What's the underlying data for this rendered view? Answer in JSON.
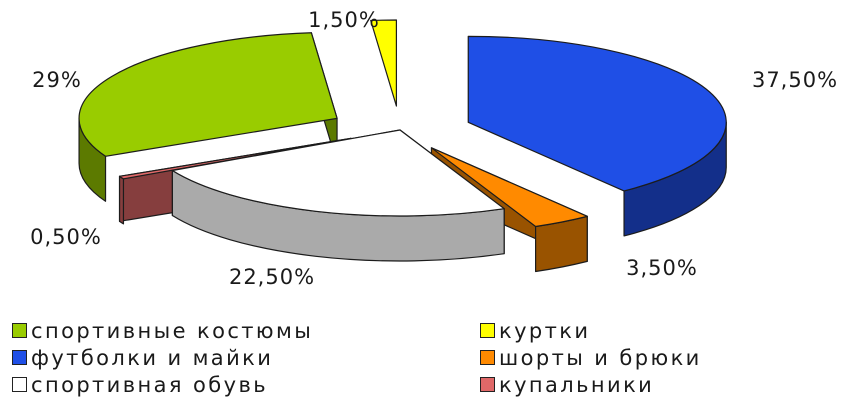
{
  "chart_data": {
    "type": "pie",
    "style": "3d-exploded",
    "slices": [
      {
        "label": "футболки и майки",
        "value": 37.5,
        "display": "37,50%",
        "color": "#1f4fe6"
      },
      {
        "label": "шорты и брюки",
        "value": 3.5,
        "display": "3,50%",
        "color": "#ff8a00"
      },
      {
        "label": "спортивная обувь",
        "value": 22.5,
        "display": "22,50%",
        "color": "#ffffff"
      },
      {
        "label": "купальники",
        "value": 0.5,
        "display": "0,50%",
        "color": "#e06868"
      },
      {
        "label": "спортивные костюмы",
        "value": 29,
        "display": "29%",
        "color": "#99cc00"
      },
      {
        "label": "куртки",
        "value": 1.5,
        "display": "1,50%",
        "color": "#ffff00"
      }
    ],
    "legend": {
      "placement": "bottom",
      "columns": [
        [
          "спортивные костюмы",
          "футболки и майки",
          "спортивная обувь"
        ],
        [
          "куртки",
          "шорты и брюки",
          "купальники"
        ]
      ]
    }
  }
}
